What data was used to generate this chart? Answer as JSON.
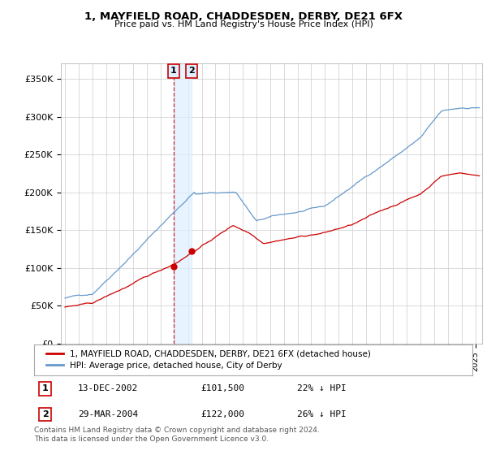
{
  "title": "1, MAYFIELD ROAD, CHADDESDEN, DERBY, DE21 6FX",
  "subtitle": "Price paid vs. HM Land Registry's House Price Index (HPI)",
  "ylabel_ticks": [
    "£0",
    "£50K",
    "£100K",
    "£150K",
    "£200K",
    "£250K",
    "£300K",
    "£350K"
  ],
  "ytick_vals": [
    0,
    50000,
    100000,
    150000,
    200000,
    250000,
    300000,
    350000
  ],
  "ylim": [
    0,
    370000
  ],
  "xlim_start": 1994.7,
  "xlim_end": 2025.5,
  "red_line_color": "#cc0000",
  "blue_line_color": "#6699cc",
  "marker_color": "#cc0000",
  "dashed_line_color": "#cc0000",
  "shade_color": "#ddeeff",
  "box_fill_color": "#ddeeff",
  "legend_label_red": "1, MAYFIELD ROAD, CHADDESDEN, DERBY, DE21 6FX (detached house)",
  "legend_label_blue": "HPI: Average price, detached house, City of Derby",
  "transaction1_date": "13-DEC-2002",
  "transaction1_price": "£101,500",
  "transaction1_hpi": "22% ↓ HPI",
  "transaction1_x": 2002.95,
  "transaction1_y": 101500,
  "transaction2_date": "29-MAR-2004",
  "transaction2_price": "£122,000",
  "transaction2_hpi": "26% ↓ HPI",
  "transaction2_x": 2004.25,
  "transaction2_y": 122000,
  "footer_text": "Contains HM Land Registry data © Crown copyright and database right 2024.\nThis data is licensed under the Open Government Licence v3.0.",
  "background_color": "#ffffff",
  "grid_color": "#cccccc"
}
